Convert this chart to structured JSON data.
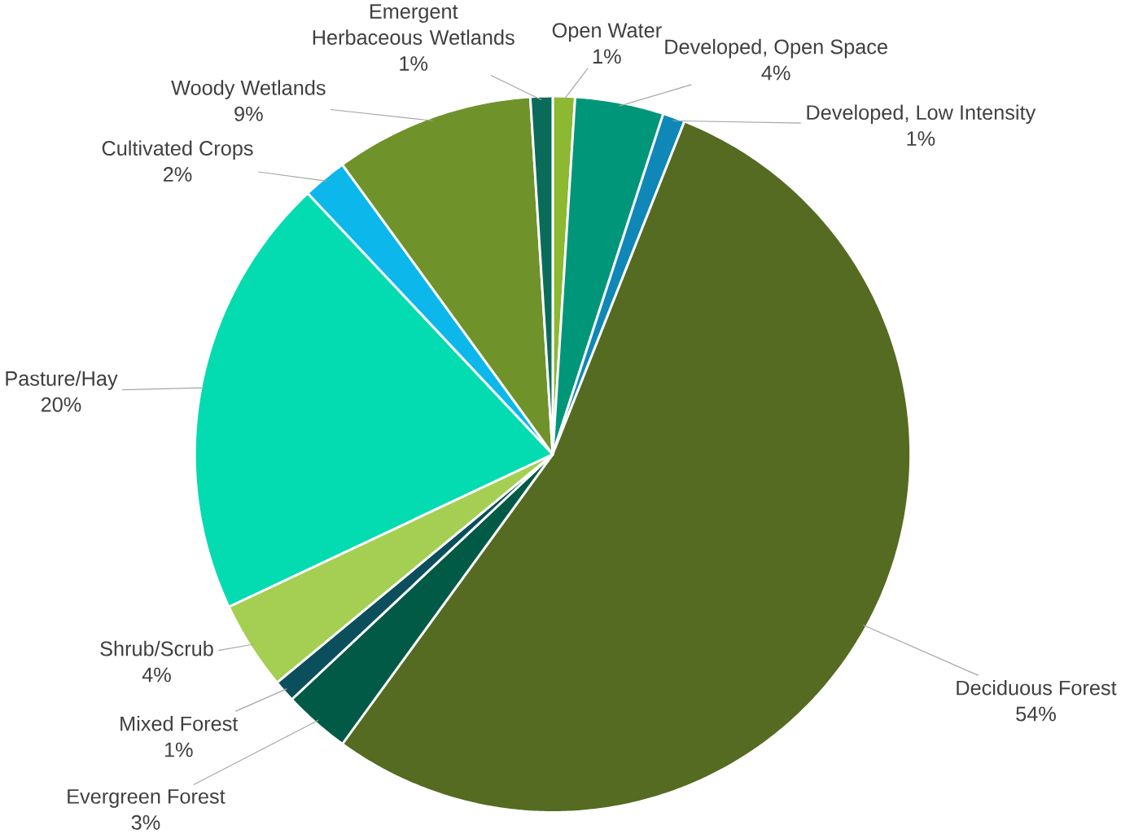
{
  "chart_data": {
    "type": "pie",
    "categories": [
      "Open Water",
      "Developed, Open Space",
      "Developed, Low Intensity",
      "Deciduous Forest",
      "Evergreen Forest",
      "Mixed Forest",
      "Shrub/Scrub",
      "Pasture/Hay",
      "Cultivated Crops",
      "Woody Wetlands",
      "Emergent Herbaceous Wetlands"
    ],
    "values": [
      1,
      4,
      1,
      54,
      3,
      1,
      4,
      20,
      2,
      9,
      1
    ],
    "value_labels": [
      "1%",
      "4%",
      "1%",
      "54%",
      "3%",
      "1%",
      "4%",
      "20%",
      "2%",
      "9%",
      "1%"
    ],
    "colors": [
      "#8cb832",
      "#00967a",
      "#0f87b7",
      "#556b21",
      "#005a46",
      "#0b4f5c",
      "#a5cf52",
      "#03dbb0",
      "#0cb8eb",
      "#6f922b",
      "#0b6b5a"
    ]
  }
}
